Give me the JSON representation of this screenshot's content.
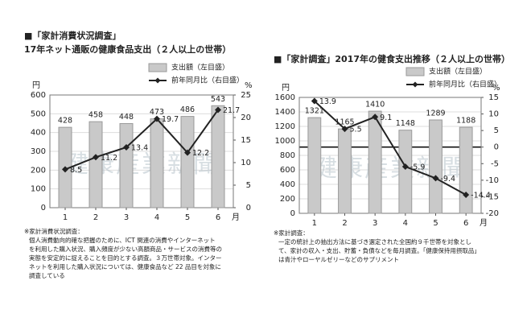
{
  "chart_data": [
    {
      "type": "bar",
      "title": "■「家計消費状況調査」",
      "subtitle": "17年ネット通販の健康食品支出（２人以上の世帯）",
      "ylabel": "円",
      "y2label": "%",
      "xlabel": "月",
      "categories": [
        "1",
        "2",
        "3",
        "4",
        "5",
        "6"
      ],
      "series": [
        {
          "name": "支出額（左目盛）",
          "color": "#c9c9c9",
          "values": [
            428,
            458,
            448,
            473,
            486,
            543
          ]
        },
        {
          "name": "前年同月比（右目盛）",
          "color": "#222222",
          "values": [
            8.5,
            11.2,
            13.4,
            19.7,
            12.2,
            21.7
          ],
          "axis": "y2"
        }
      ],
      "ylim": [
        0,
        600
      ],
      "yticks": [
        0,
        100,
        200,
        300,
        400,
        500,
        600
      ],
      "y2lim": [
        0,
        25
      ],
      "y2ticks": [
        0,
        5,
        10,
        15,
        20,
        25
      ],
      "grid": true,
      "watermark": "健康産業新聞",
      "notes": [
        "※家計消費状況調査：",
        "個人消費動向的確な把握のために、ICT 関連の消費やインターネット",
        "を利用した購入状況、購入頻度が少ない高額商品・サービスの消費等の",
        "実態を安定的に捉えることを目的とする調査。３万世帯対象。インター",
        "ネットを利用した購入状況については、健康食品など 22 品目を対象に",
        "調査している"
      ]
    },
    {
      "type": "bar",
      "title": "■「家計調査」2017年の健食支出推移（２人以上の世帯）",
      "ylabel": "円",
      "y2label": "%",
      "xlabel": "月",
      "categories": [
        "1",
        "2",
        "3",
        "4",
        "5",
        "6"
      ],
      "series": [
        {
          "name": "支出額（左目盛）",
          "color": "#c9c9c9",
          "values": [
            1321,
            1165,
            1410,
            1148,
            1289,
            1188
          ]
        },
        {
          "name": "前年同月比（右目盛）",
          "color": "#222222",
          "values": [
            13.9,
            5.5,
            9.1,
            -5.9,
            -9.4,
            -14.4
          ],
          "axis": "y2"
        }
      ],
      "ylim": [
        0,
        1600
      ],
      "yticks": [
        0,
        200,
        400,
        600,
        800,
        1000,
        1200,
        1400,
        1600
      ],
      "y2lim": [
        -20,
        15
      ],
      "y2ticks": [
        -20,
        -15,
        -10,
        -5,
        0,
        5,
        10,
        15
      ],
      "grid": true,
      "watermark": "健康産業新聞",
      "notes": [
        "※家計調査：",
        "一定の統計上の抽出方法に基づき選定された全国約９千世帯を対象とし",
        "て、家計の収入・支出、貯蓄・負債などを毎月調査。「健康保持用摂取品」",
        "は青汁やローヤルゼリーなどのサプリメント"
      ]
    }
  ]
}
